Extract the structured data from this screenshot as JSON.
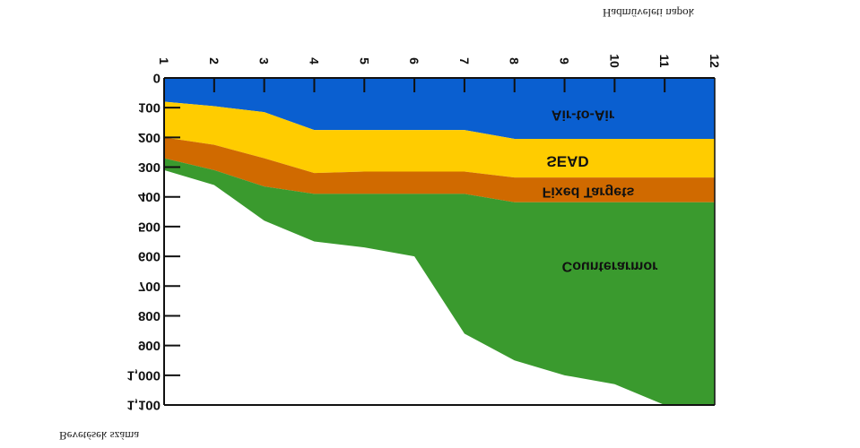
{
  "chart_data": {
    "type": "area",
    "title": "",
    "xlabel": "Hadműveleti napok",
    "ylabel": "Bevetések száma",
    "x": [
      1,
      2,
      3,
      4,
      5,
      6,
      7,
      8,
      9,
      10,
      11,
      12
    ],
    "x_tick_labels": [
      "1",
      "2",
      "3",
      "4",
      "5",
      "6",
      "7",
      "8",
      "9",
      "10",
      "11",
      "12"
    ],
    "ylim": [
      0,
      1100
    ],
    "y_ticks": [
      0,
      100,
      200,
      300,
      400,
      500,
      600,
      700,
      800,
      900,
      1000,
      1100
    ],
    "y_tick_labels": [
      "0",
      "100",
      "200",
      "300",
      "400",
      "500",
      "600",
      "700",
      "800",
      "900",
      "1,000",
      "1,100"
    ],
    "y_inverted": true,
    "series": [
      {
        "name": "Air-to-Air",
        "color": "#0a5fd0",
        "values": [
          80,
          95,
          115,
          175,
          175,
          175,
          175,
          205,
          205,
          205,
          205,
          205
        ]
      },
      {
        "name": "SEAD",
        "color": "#ffcc00",
        "values": [
          200,
          225,
          270,
          320,
          315,
          315,
          315,
          335,
          335,
          335,
          335,
          335
        ]
      },
      {
        "name": "Fixed Targets",
        "color": "#d06a00",
        "values": [
          270,
          310,
          365,
          390,
          390,
          390,
          390,
          418,
          418,
          418,
          418,
          418
        ]
      },
      {
        "name": "Counterarmor",
        "color": "#3a9a2e",
        "values": [
          310,
          360,
          480,
          550,
          570,
          600,
          860,
          950,
          1000,
          1030,
          1100,
          1100
        ]
      }
    ]
  }
}
